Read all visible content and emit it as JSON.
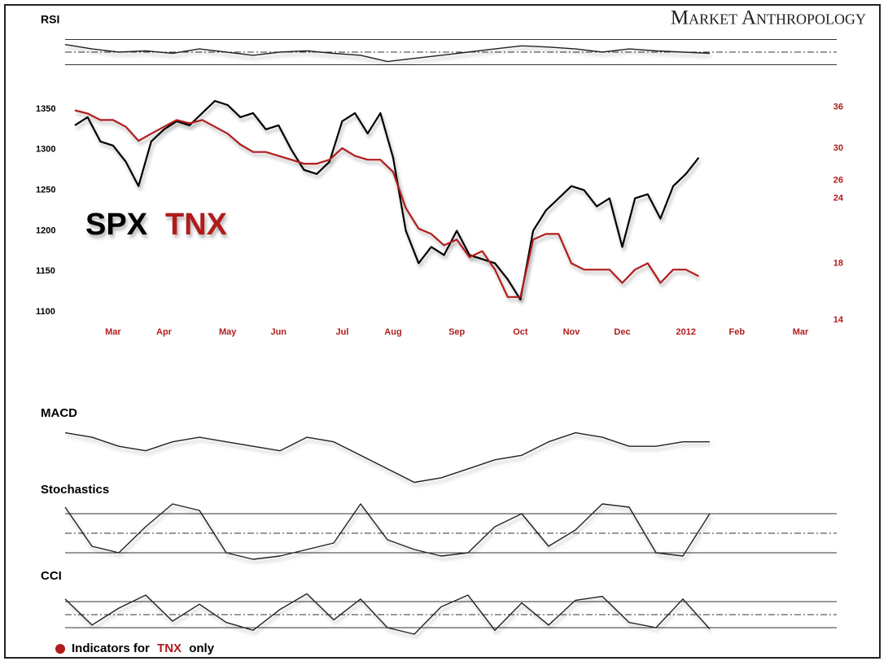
{
  "brand": "Market Anthropology",
  "footnote": {
    "before": "Indicators for",
    "highlight": "TNX",
    "after": "only"
  },
  "chart_data": [
    {
      "type": "line",
      "categories": [
        null,
        null,
        null,
        "Mar",
        null,
        null,
        null,
        "Apr",
        null,
        null,
        null,
        null,
        "May",
        null,
        null,
        null,
        "Jun",
        null,
        null,
        null,
        null,
        "Jul",
        null,
        null,
        null,
        "Aug",
        null,
        null,
        null,
        null,
        "Sep",
        null,
        null,
        null,
        null,
        "Oct",
        null,
        null,
        null,
        "Nov",
        null,
        null,
        null,
        "Dec",
        null,
        null,
        null,
        null,
        "2012",
        null,
        null,
        null,
        "Feb",
        null,
        null,
        null,
        null,
        "Mar",
        null,
        null
      ],
      "series": [
        {
          "name": "SPX",
          "color": "#000000",
          "axis": "y",
          "values": [
            1330,
            1340,
            1310,
            1305,
            1285,
            1255,
            1310,
            1325,
            1335,
            1330,
            1345,
            1360,
            1355,
            1340,
            1345,
            1325,
            1330,
            1300,
            1275,
            1270,
            1285,
            1335,
            1345,
            1320,
            1345,
            1290,
            1200,
            1160,
            1180,
            1170,
            1200,
            1170,
            1165,
            1160,
            1140,
            1115,
            1200,
            1225,
            1240,
            1255,
            1250,
            1230,
            1240,
            1180,
            1240,
            1245,
            1215,
            1255,
            1270,
            1290,
            null,
            null,
            null,
            null,
            null,
            null,
            null,
            null,
            null,
            null
          ]
        },
        {
          "name": "TNX",
          "color": "#b01c1c",
          "axis": "y2",
          "values": [
            35.5,
            35,
            34,
            34,
            33,
            31,
            32,
            33,
            34,
            33.5,
            34,
            33,
            32,
            30.5,
            29.5,
            29.5,
            29,
            28.5,
            28,
            28,
            28.5,
            30,
            29,
            28.5,
            28.5,
            27,
            23,
            21,
            20.5,
            19.5,
            20,
            18.5,
            19,
            17.5,
            15.5,
            15.5,
            20,
            20.5,
            20.5,
            18,
            17.5,
            17.5,
            17.5,
            16.5,
            17.5,
            18,
            16.5,
            17.5,
            17.5,
            17,
            null,
            null,
            null,
            null,
            null,
            null,
            null,
            null,
            null,
            null
          ]
        }
      ],
      "ylim": [
        1090,
        1360
      ],
      "yticks": [
        1100,
        1150,
        1200,
        1250,
        1300,
        1350
      ],
      "y2lim": [
        14,
        37
      ],
      "y2ticks": [
        14,
        18,
        24,
        26,
        30,
        36
      ],
      "y2log": true,
      "grid": false
    },
    {
      "type": "indicator",
      "title": "RSI",
      "ylim": [
        28,
        72
      ],
      "hlines": [
        30,
        50,
        70
      ],
      "values": [
        62,
        55,
        50,
        52,
        48,
        55,
        50,
        45,
        50,
        52,
        48,
        45,
        35,
        40,
        45,
        50,
        55,
        60,
        58,
        55,
        50,
        55,
        52,
        50,
        48
      ]
    },
    {
      "type": "indicator",
      "title": "MACD",
      "ylim": [
        -10,
        5
      ],
      "hlines": [],
      "values": [
        2,
        1,
        -1,
        -2,
        0,
        1,
        0,
        -1,
        -2,
        1,
        0,
        -3,
        -6,
        -9,
        -8,
        -6,
        -4,
        -3,
        0,
        2,
        1,
        -1,
        -1,
        0,
        0
      ]
    },
    {
      "type": "indicator",
      "title": "Stochastics",
      "ylim": [
        0,
        100
      ],
      "hlines": [
        20,
        50,
        80
      ],
      "values": [
        90,
        30,
        20,
        60,
        95,
        85,
        20,
        10,
        15,
        25,
        35,
        95,
        40,
        25,
        15,
        20,
        60,
        80,
        30,
        55,
        95,
        90,
        20,
        15,
        80
      ]
    },
    {
      "type": "indicator",
      "title": "CCI",
      "ylim": [
        -200,
        200
      ],
      "hlines": [
        -100,
        0,
        100
      ],
      "values": [
        120,
        -80,
        50,
        150,
        -50,
        80,
        -60,
        -120,
        40,
        160,
        -40,
        120,
        -100,
        -150,
        60,
        150,
        -120,
        90,
        -80,
        110,
        140,
        -60,
        -100,
        120,
        -110
      ]
    }
  ]
}
